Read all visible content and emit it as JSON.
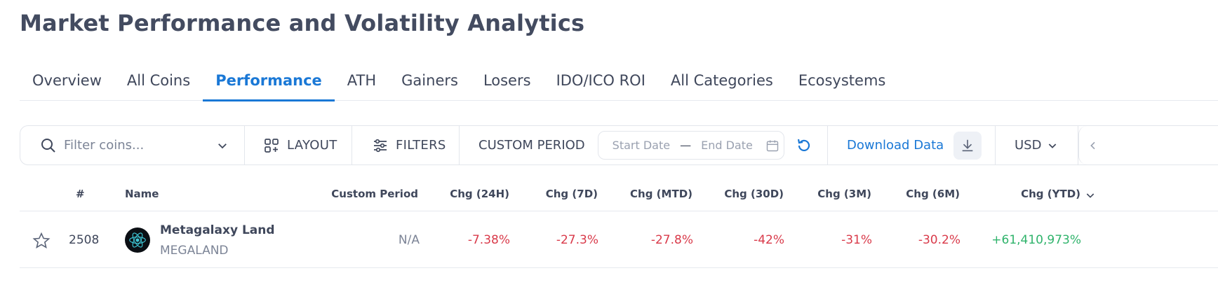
{
  "page": {
    "title": "Market Performance and Volatility Analytics"
  },
  "tabs": [
    {
      "label": "Overview",
      "active": false
    },
    {
      "label": "All Coins",
      "active": false
    },
    {
      "label": "Performance",
      "active": true
    },
    {
      "label": "ATH",
      "active": false
    },
    {
      "label": "Gainers",
      "active": false
    },
    {
      "label": "Losers",
      "active": false
    },
    {
      "label": "IDO/ICO ROI",
      "active": false
    },
    {
      "label": "All Categories",
      "active": false
    },
    {
      "label": "Ecosystems",
      "active": false
    }
  ],
  "toolbar": {
    "search_placeholder": "Filter coins...",
    "layout_label": "LAYOUT",
    "filters_label": "FILTERS",
    "custom_period_label": "CUSTOM PERIOD",
    "start_date_placeholder": "Start Date",
    "date_separator": "—",
    "end_date_placeholder": "End Date",
    "download_label": "Download Data",
    "currency": "USD"
  },
  "table": {
    "columns": [
      "#",
      "Name",
      "Custom Period",
      "Chg (24H)",
      "Chg (7D)",
      "Chg (MTD)",
      "Chg (30D)",
      "Chg (3M)",
      "Chg (6M)",
      "Chg (YTD)"
    ],
    "rows": [
      {
        "rank": "2508",
        "name": "Metagalaxy Land",
        "symbol": "MEGALAND",
        "custom_period": "N/A",
        "chg_24h": "-7.38%",
        "chg_7d": "-27.3%",
        "chg_mtd": "-27.8%",
        "chg_30d": "-42%",
        "chg_3m": "-31%",
        "chg_6m": "-30.2%",
        "chg_ytd": "+61,410,973%"
      }
    ]
  },
  "colors": {
    "accent": "#1a78d6",
    "negative": "#d93a4a",
    "positive": "#2fb36b",
    "text": "#3f475b"
  }
}
